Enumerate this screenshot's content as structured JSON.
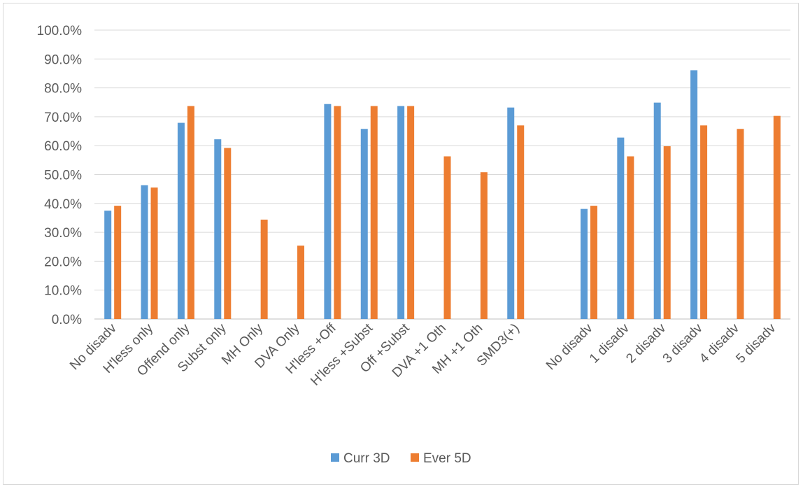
{
  "chart_data": {
    "type": "bar",
    "title": "",
    "xlabel": "",
    "ylabel": "",
    "ylim": [
      0,
      100
    ],
    "y_ticks": [
      "0.0%",
      "10.0%",
      "20.0%",
      "30.0%",
      "40.0%",
      "50.0%",
      "60.0%",
      "70.0%",
      "80.0%",
      "90.0%",
      "100.0%"
    ],
    "grid": true,
    "legend_position": "bottom",
    "categories": [
      "No disadv",
      "H'less only",
      "Offend only",
      "Subst only",
      "MH Only",
      "DVA Only",
      "H'less +Off",
      "H'less +Subst",
      "Off +Subst",
      "DVA +1 Oth",
      "MH +1 Oth",
      "SMD3(+)",
      "",
      "No disadv",
      "1 disadv",
      "2 disadv",
      "3 disadv",
      "4 disadv",
      "5 disadv"
    ],
    "series": [
      {
        "name": "Curr 3D",
        "color": "#5b9bd5",
        "values": [
          37.5,
          46.3,
          67.9,
          62.2,
          null,
          null,
          74.4,
          65.8,
          73.7,
          null,
          null,
          73.2,
          null,
          38.1,
          62.8,
          74.9,
          86.1,
          null,
          null
        ]
      },
      {
        "name": "Ever 5D",
        "color": "#ed7d31",
        "values": [
          39.2,
          45.5,
          73.7,
          59.2,
          34.4,
          25.4,
          73.7,
          73.7,
          73.7,
          56.3,
          50.8,
          67.0,
          null,
          39.2,
          56.3,
          59.8,
          67.0,
          65.8,
          70.3
        ]
      }
    ]
  }
}
